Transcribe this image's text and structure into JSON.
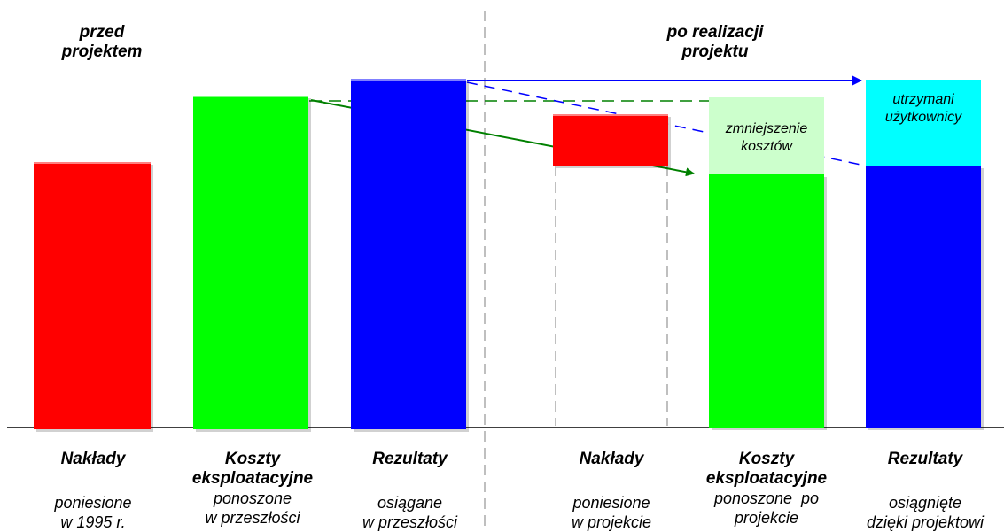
{
  "phases": {
    "before": "przed projektem",
    "after": "po realizacji projektu"
  },
  "colors": {
    "costs_before": "#ff0000",
    "maintenance": "#00ff00",
    "results": "#0000ff",
    "cost_reduction": "#ccffcc",
    "retained_users": "#00ffff",
    "arrow_green": "#008000",
    "arrow_blue": "#0000ff"
  },
  "annotations": {
    "cost_reduction": "zmniejszenie kosztów",
    "retained_users": "utrzymani użytkownicy"
  },
  "before": [
    {
      "name": "Nakłady",
      "sub_line1": "poniesione",
      "sub_line2": "w 1995 r."
    },
    {
      "name_line1": "Koszty",
      "name_line2": "eksploatacyjne",
      "sub_line1": "ponoszone",
      "sub_line2": "w przeszłości"
    },
    {
      "name": "Rezultaty",
      "sub_line1": "osiągane",
      "sub_line2": "w przeszłości"
    }
  ],
  "after": [
    {
      "name": "Nakłady",
      "sub_line1": "poniesione",
      "sub_line2": "w projekcie"
    },
    {
      "name_line1": "Koszty",
      "name_line2": "eksploatacyjne",
      "sub_line1": "ponoszone  po",
      "sub_line2": "projekcie"
    },
    {
      "name": "Rezultaty",
      "sub_line1": "osiągnięte",
      "sub_line2": "dzięki projektowi"
    }
  ]
}
